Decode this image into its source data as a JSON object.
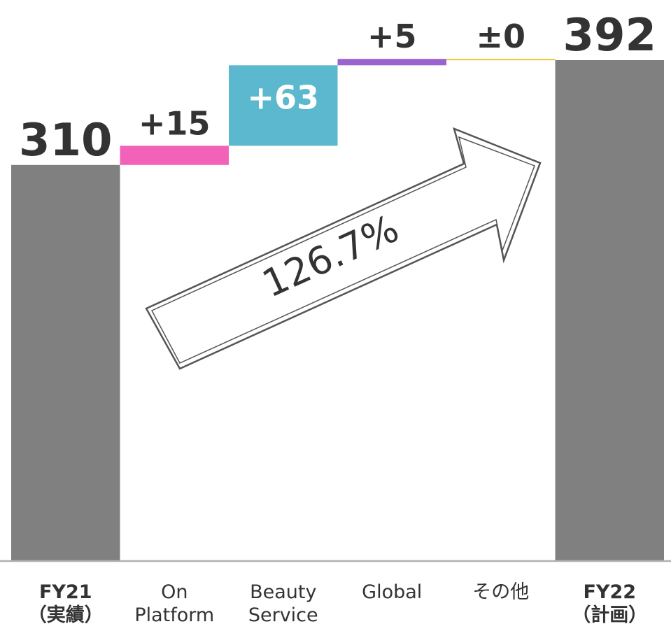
{
  "chart_data": {
    "type": "bar",
    "subtype": "waterfall",
    "categories": [
      {
        "line1": "FY21",
        "line2": "（実績）",
        "bold": true
      },
      {
        "line1": "On",
        "line2": "Platform",
        "bold": false
      },
      {
        "line1": "Beauty",
        "line2": "Service",
        "bold": false
      },
      {
        "line1": "Global",
        "line2": "",
        "bold": false
      },
      {
        "line1": "その他",
        "line2": "",
        "bold": false
      },
      {
        "line1": "FY22",
        "line2": "（計画）",
        "bold": true
      }
    ],
    "bars": [
      {
        "kind": "total",
        "value": 310,
        "label": "310",
        "color": "#808080"
      },
      {
        "kind": "delta",
        "value": 15,
        "label": "+15",
        "color": "#F262B8"
      },
      {
        "kind": "delta",
        "value": 63,
        "label": "+63",
        "color": "#5BB8CF",
        "label_inside": true
      },
      {
        "kind": "delta",
        "value": 5,
        "label": "+5",
        "color": "#9B63CF"
      },
      {
        "kind": "delta",
        "value": 0,
        "label": "±0",
        "color": "#E8C53A"
      },
      {
        "kind": "total",
        "value": 392,
        "label": "392",
        "color": "#808080"
      }
    ],
    "ylim": [
      0,
      392
    ],
    "annotation": {
      "text": "126.7%",
      "shape": "arrow"
    },
    "grid": false,
    "legend": "none"
  }
}
